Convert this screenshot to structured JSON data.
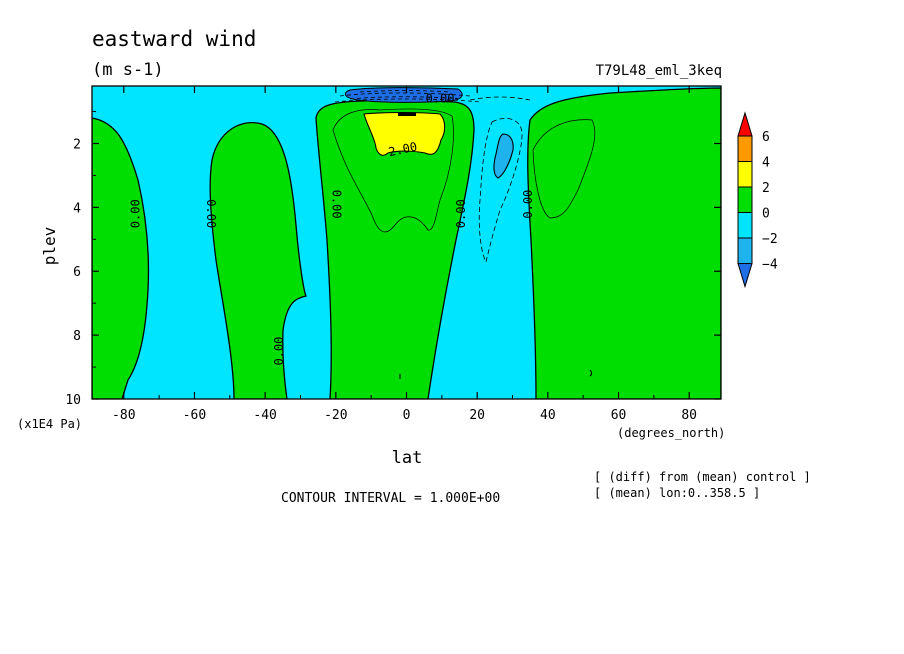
{
  "chart_data": {
    "type": "contour",
    "title": "eastward wind",
    "units": "(m s-1)",
    "run_label": "T79L48_eml_3keq",
    "xlabel": "lat",
    "x_units": "(degrees_north)",
    "ylabel": "plev",
    "y_units": "(x1E4 Pa)",
    "x_ticks": [
      "-80",
      "-60",
      "-40",
      "-20",
      "0",
      "20",
      "40",
      "60",
      "80"
    ],
    "y_ticks": [
      "2",
      "4",
      "6",
      "8",
      "10"
    ],
    "xlim": [
      -89,
      89
    ],
    "ylim": [
      0.2,
      10
    ],
    "y_inverted": true,
    "contour_interval_text": "CONTOUR INTERVAL = 1.000E+00",
    "notes": [
      "[ (diff) from (mean) control ]",
      "[ (mean) lon:0..358.5 ]"
    ],
    "contour_labels": [
      "0.00",
      "0.00",
      "0.00",
      "0.00",
      "0.00",
      "0.00",
      "0.00",
      "2.00",
      "0.00"
    ],
    "colorbar": {
      "labels": [
        "6",
        "4",
        "2",
        "0",
        "−2",
        "−4"
      ],
      "levels": [
        -6,
        -4,
        -2,
        0,
        2,
        4,
        6
      ],
      "colors": [
        "#1e6fe6",
        "#1fb3ee",
        "#00e5ff",
        "#00dd00",
        "#ffff00",
        "#ff9900",
        "#ff0000"
      ]
    },
    "regions": [
      {
        "sign": "positive",
        "lat_range": [
          -89,
          -76
        ],
        "description": "westerly band near south pole"
      },
      {
        "sign": "negative",
        "lat_range": [
          -76,
          -60
        ]
      },
      {
        "sign": "positive",
        "lat_range": [
          -60,
          -36
        ]
      },
      {
        "sign": "negative",
        "lat_range": [
          -36,
          -25
        ]
      },
      {
        "sign": "positive",
        "lat_range": [
          -25,
          14
        ],
        "max": 3.5
      },
      {
        "sign": "negative",
        "lat_range": [
          14,
          36
        ],
        "min": -3
      },
      {
        "sign": "positive",
        "lat_range": [
          36,
          89
        ]
      }
    ]
  }
}
